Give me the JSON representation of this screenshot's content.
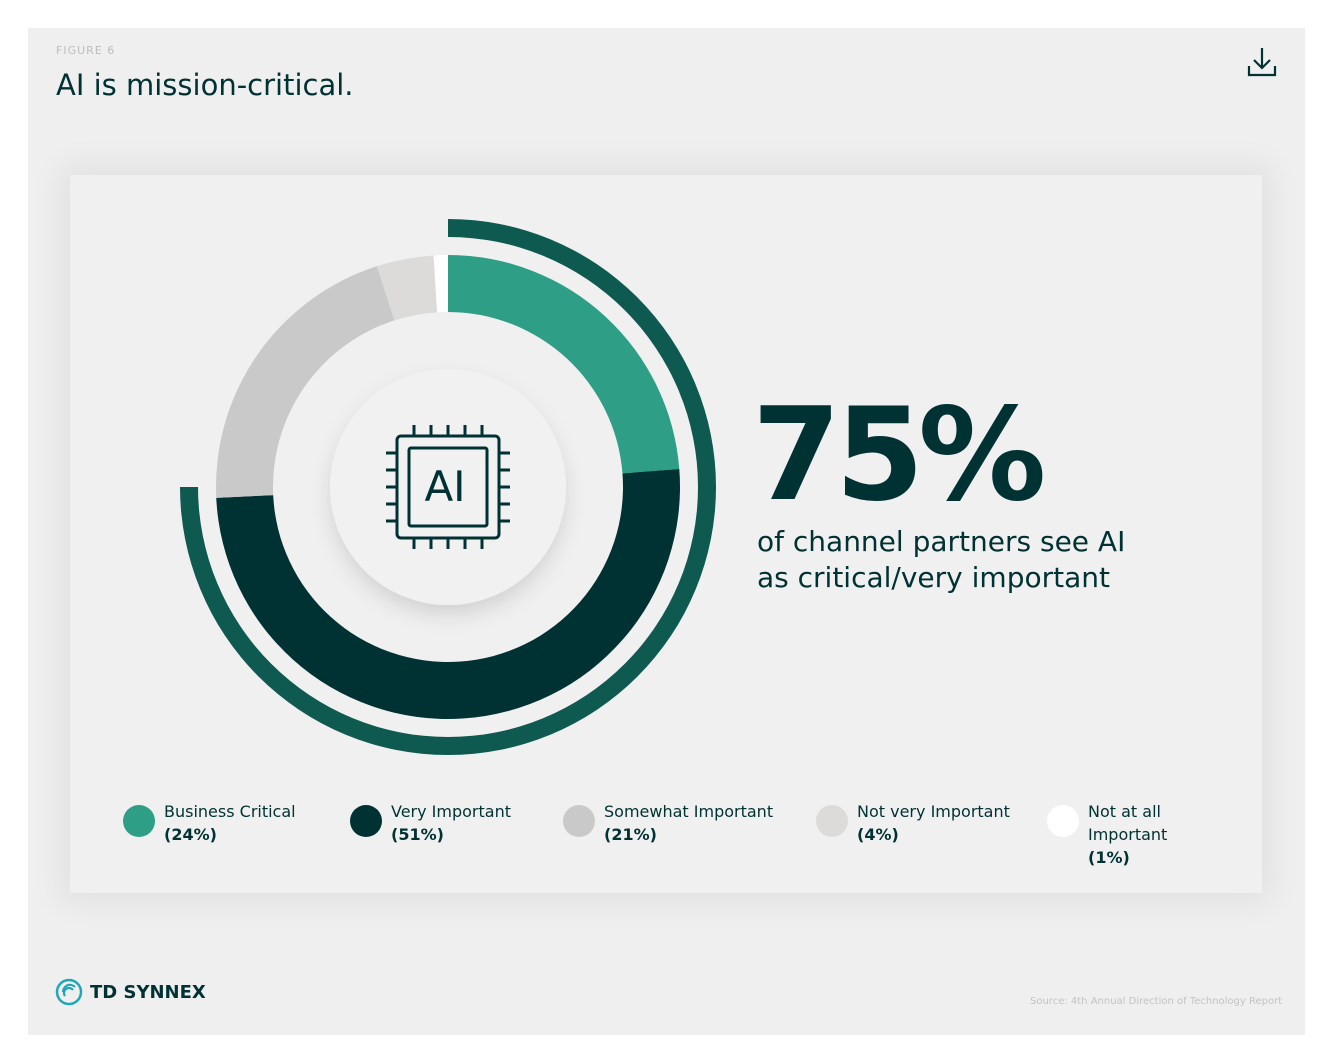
{
  "figure_label": "FIGURE 6",
  "title": "AI is mission-critical.",
  "chart_data": {
    "type": "donut",
    "categories": [
      "Business Critical",
      "Very Important",
      "Somewhat Important",
      "Not very Important",
      "Not at all Important"
    ],
    "values": [
      24,
      51,
      21,
      4,
      1
    ],
    "value_labels": [
      "(24%)",
      "(51%)",
      "(21%)",
      "(4%)",
      "(1%)"
    ],
    "colors": [
      "#2e9e87",
      "#003133",
      "#c9c9c9",
      "#dcdbda",
      "#ffffff"
    ],
    "icon_label": "AI",
    "highlight": {
      "value": 75,
      "label": "75%",
      "text": "of channel partners see AI as critical/very important",
      "color": "#0f5a50"
    }
  },
  "brand": "TD SYNNEX",
  "source": "Source: 4th Annual Direction of Technology Report"
}
